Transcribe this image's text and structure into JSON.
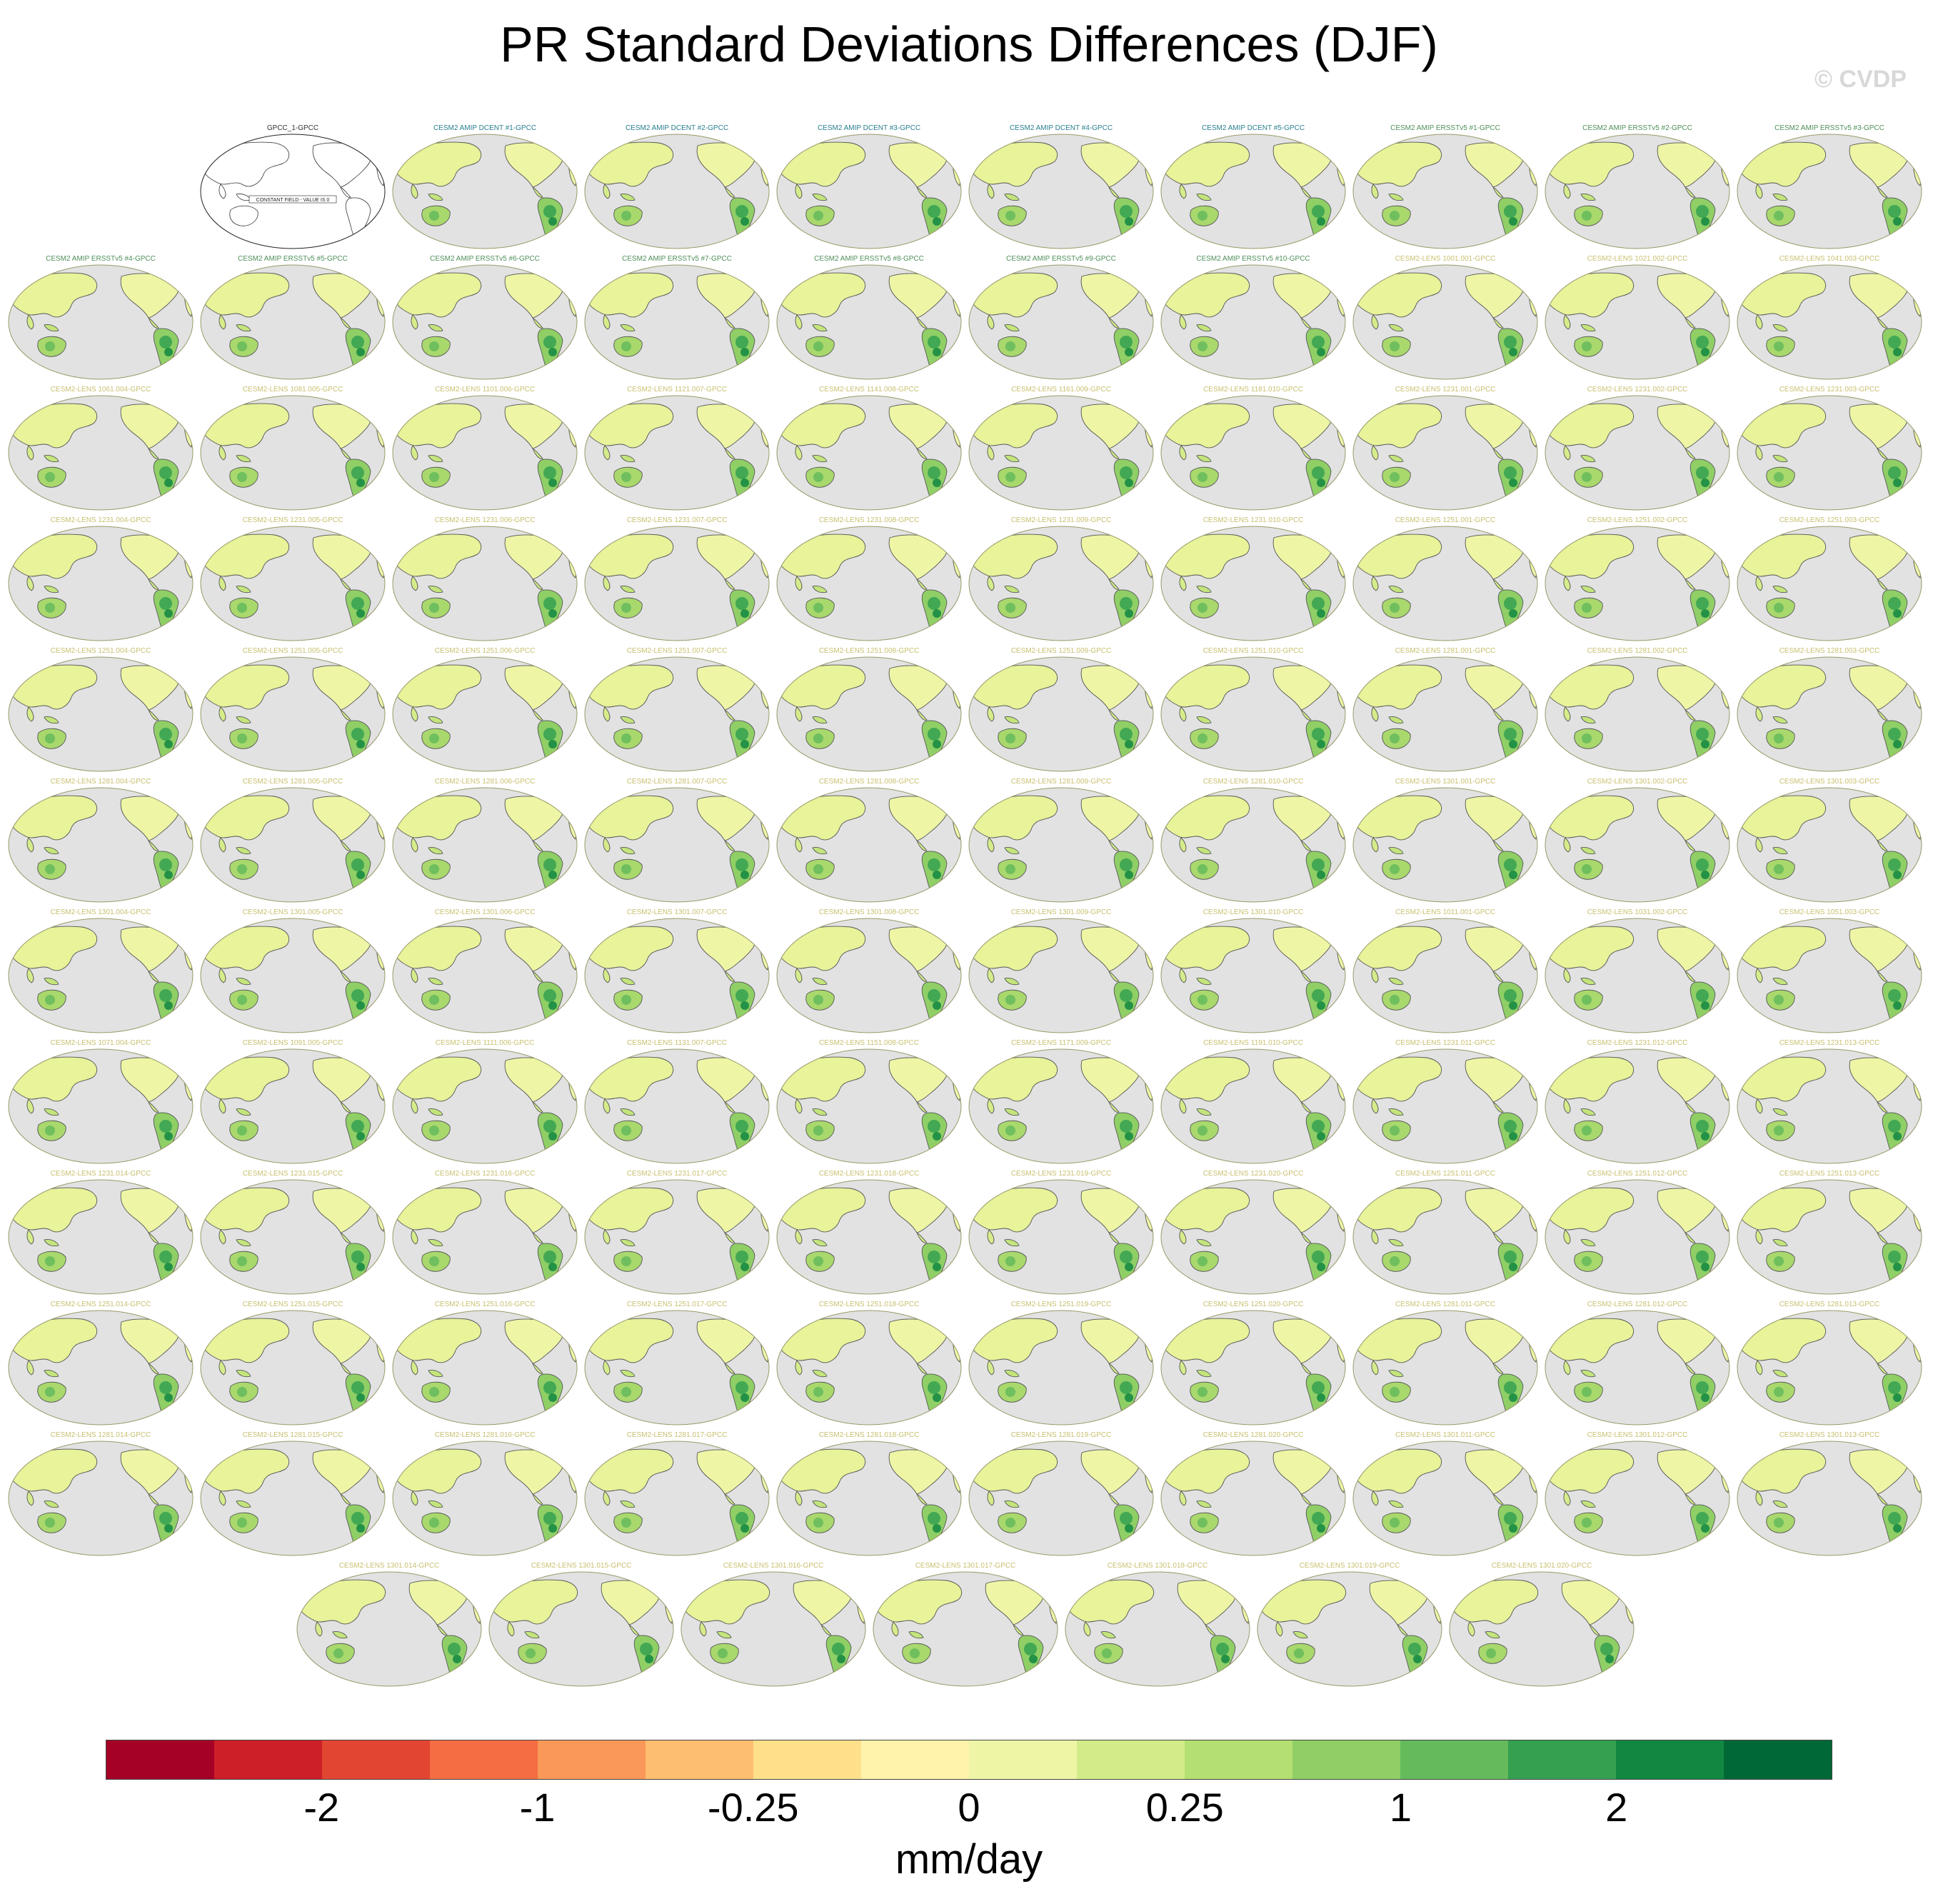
{
  "title": "PR Standard Deviations Differences (DJF)",
  "watermark": "© CVDP",
  "colors": {
    "ocean": "#e2e2e2",
    "coast": "#555555",
    "obs_title": "#333333",
    "dcent_title": "#2a7f8f",
    "ersst_title": "#4f8f5a",
    "lens_title": "#c8c070"
  },
  "panels": [
    {
      "title": "GPCC_1-GPCC",
      "kind": "obs",
      "note": "CONSTANT FIELD - VALUE IS 0"
    },
    {
      "title": "CESM2 AMIP DCENT #1-GPCC",
      "kind": "dcent"
    },
    {
      "title": "CESM2 AMIP DCENT #2-GPCC",
      "kind": "dcent"
    },
    {
      "title": "CESM2 AMIP DCENT #3-GPCC",
      "kind": "dcent"
    },
    {
      "title": "CESM2 AMIP DCENT #4-GPCC",
      "kind": "dcent"
    },
    {
      "title": "CESM2 AMIP DCENT #5-GPCC",
      "kind": "dcent"
    },
    {
      "title": "CESM2 AMIP ERSSTv5 #1-GPCC",
      "kind": "ersst"
    },
    {
      "title": "CESM2 AMIP ERSSTv5 #2-GPCC",
      "kind": "ersst"
    },
    {
      "title": "CESM2 AMIP ERSSTv5 #3-GPCC",
      "kind": "ersst"
    },
    {
      "title": "CESM2 AMIP ERSSTv5 #4-GPCC",
      "kind": "ersst"
    },
    {
      "title": "CESM2 AMIP ERSSTv5 #5-GPCC",
      "kind": "ersst"
    },
    {
      "title": "CESM2 AMIP ERSSTv5 #6-GPCC",
      "kind": "ersst"
    },
    {
      "title": "CESM2 AMIP ERSSTv5 #7-GPCC",
      "kind": "ersst"
    },
    {
      "title": "CESM2 AMIP ERSSTv5 #8-GPCC",
      "kind": "ersst"
    },
    {
      "title": "CESM2 AMIP ERSSTv5 #9-GPCC",
      "kind": "ersst"
    },
    {
      "title": "CESM2 AMIP ERSSTv5 #10-GPCC",
      "kind": "ersst"
    },
    {
      "title": "CESM2-LENS 1001.001-GPCC",
      "kind": "lens"
    },
    {
      "title": "CESM2-LENS 1021.002-GPCC",
      "kind": "lens"
    },
    {
      "title": "CESM2-LENS 1041.003-GPCC",
      "kind": "lens"
    },
    {
      "title": "CESM2-LENS 1061.004-GPCC",
      "kind": "lens"
    },
    {
      "title": "CESM2-LENS 1081.005-GPCC",
      "kind": "lens"
    },
    {
      "title": "CESM2-LENS 1101.006-GPCC",
      "kind": "lens"
    },
    {
      "title": "CESM2-LENS 1121.007-GPCC",
      "kind": "lens"
    },
    {
      "title": "CESM2-LENS 1141.008-GPCC",
      "kind": "lens"
    },
    {
      "title": "CESM2-LENS 1161.009-GPCC",
      "kind": "lens"
    },
    {
      "title": "CESM2-LENS 1181.010-GPCC",
      "kind": "lens"
    },
    {
      "title": "CESM2-LENS 1231.001-GPCC",
      "kind": "lens"
    },
    {
      "title": "CESM2-LENS 1231.002-GPCC",
      "kind": "lens"
    },
    {
      "title": "CESM2-LENS 1231.003-GPCC",
      "kind": "lens"
    },
    {
      "title": "CESM2-LENS 1231.004-GPCC",
      "kind": "lens"
    },
    {
      "title": "CESM2-LENS 1231.005-GPCC",
      "kind": "lens"
    },
    {
      "title": "CESM2-LENS 1231.006-GPCC",
      "kind": "lens"
    },
    {
      "title": "CESM2-LENS 1231.007-GPCC",
      "kind": "lens"
    },
    {
      "title": "CESM2-LENS 1231.008-GPCC",
      "kind": "lens"
    },
    {
      "title": "CESM2-LENS 1231.009-GPCC",
      "kind": "lens"
    },
    {
      "title": "CESM2-LENS 1231.010-GPCC",
      "kind": "lens"
    },
    {
      "title": "CESM2-LENS 1251.001-GPCC",
      "kind": "lens"
    },
    {
      "title": "CESM2-LENS 1251.002-GPCC",
      "kind": "lens"
    },
    {
      "title": "CESM2-LENS 1251.003-GPCC",
      "kind": "lens"
    },
    {
      "title": "CESM2-LENS 1251.004-GPCC",
      "kind": "lens"
    },
    {
      "title": "CESM2-LENS 1251.005-GPCC",
      "kind": "lens"
    },
    {
      "title": "CESM2-LENS 1251.006-GPCC",
      "kind": "lens"
    },
    {
      "title": "CESM2-LENS 1251.007-GPCC",
      "kind": "lens"
    },
    {
      "title": "CESM2-LENS 1251.008-GPCC",
      "kind": "lens"
    },
    {
      "title": "CESM2-LENS 1251.009-GPCC",
      "kind": "lens"
    },
    {
      "title": "CESM2-LENS 1251.010-GPCC",
      "kind": "lens"
    },
    {
      "title": "CESM2-LENS 1281.001-GPCC",
      "kind": "lens"
    },
    {
      "title": "CESM2-LENS 1281.002-GPCC",
      "kind": "lens"
    },
    {
      "title": "CESM2-LENS 1281.003-GPCC",
      "kind": "lens"
    },
    {
      "title": "CESM2-LENS 1281.004-GPCC",
      "kind": "lens"
    },
    {
      "title": "CESM2-LENS 1281.005-GPCC",
      "kind": "lens"
    },
    {
      "title": "CESM2-LENS 1281.006-GPCC",
      "kind": "lens"
    },
    {
      "title": "CESM2-LENS 1281.007-GPCC",
      "kind": "lens"
    },
    {
      "title": "CESM2-LENS 1281.008-GPCC",
      "kind": "lens"
    },
    {
      "title": "CESM2-LENS 1281.009-GPCC",
      "kind": "lens"
    },
    {
      "title": "CESM2-LENS 1281.010-GPCC",
      "kind": "lens"
    },
    {
      "title": "CESM2-LENS 1301.001-GPCC",
      "kind": "lens"
    },
    {
      "title": "CESM2-LENS 1301.002-GPCC",
      "kind": "lens"
    },
    {
      "title": "CESM2-LENS 1301.003-GPCC",
      "kind": "lens"
    },
    {
      "title": "CESM2-LENS 1301.004-GPCC",
      "kind": "lens"
    },
    {
      "title": "CESM2-LENS 1301.005-GPCC",
      "kind": "lens"
    },
    {
      "title": "CESM2-LENS 1301.006-GPCC",
      "kind": "lens"
    },
    {
      "title": "CESM2-LENS 1301.007-GPCC",
      "kind": "lens"
    },
    {
      "title": "CESM2-LENS 1301.008-GPCC",
      "kind": "lens"
    },
    {
      "title": "CESM2-LENS 1301.009-GPCC",
      "kind": "lens"
    },
    {
      "title": "CESM2-LENS 1301.010-GPCC",
      "kind": "lens"
    },
    {
      "title": "CESM2-LENS 1011.001-GPCC",
      "kind": "lens"
    },
    {
      "title": "CESM2-LENS 1031.002-GPCC",
      "kind": "lens"
    },
    {
      "title": "CESM2-LENS 1051.003-GPCC",
      "kind": "lens"
    },
    {
      "title": "CESM2-LENS 1071.004-GPCC",
      "kind": "lens"
    },
    {
      "title": "CESM2-LENS 1091.005-GPCC",
      "kind": "lens"
    },
    {
      "title": "CESM2-LENS 1111.006-GPCC",
      "kind": "lens"
    },
    {
      "title": "CESM2-LENS 1131.007-GPCC",
      "kind": "lens"
    },
    {
      "title": "CESM2-LENS 1151.008-GPCC",
      "kind": "lens"
    },
    {
      "title": "CESM2-LENS 1171.009-GPCC",
      "kind": "lens"
    },
    {
      "title": "CESM2-LENS 1191.010-GPCC",
      "kind": "lens"
    },
    {
      "title": "CESM2-LENS 1231.011-GPCC",
      "kind": "lens"
    },
    {
      "title": "CESM2-LENS 1231.012-GPCC",
      "kind": "lens"
    },
    {
      "title": "CESM2-LENS 1231.013-GPCC",
      "kind": "lens"
    },
    {
      "title": "CESM2-LENS 1231.014-GPCC",
      "kind": "lens"
    },
    {
      "title": "CESM2-LENS 1231.015-GPCC",
      "kind": "lens"
    },
    {
      "title": "CESM2-LENS 1231.016-GPCC",
      "kind": "lens"
    },
    {
      "title": "CESM2-LENS 1231.017-GPCC",
      "kind": "lens"
    },
    {
      "title": "CESM2-LENS 1231.018-GPCC",
      "kind": "lens"
    },
    {
      "title": "CESM2-LENS 1231.019-GPCC",
      "kind": "lens"
    },
    {
      "title": "CESM2-LENS 1231.020-GPCC",
      "kind": "lens"
    },
    {
      "title": "CESM2-LENS 1251.011-GPCC",
      "kind": "lens"
    },
    {
      "title": "CESM2-LENS 1251.012-GPCC",
      "kind": "lens"
    },
    {
      "title": "CESM2-LENS 1251.013-GPCC",
      "kind": "lens"
    },
    {
      "title": "CESM2-LENS 1251.014-GPCC",
      "kind": "lens"
    },
    {
      "title": "CESM2-LENS 1251.015-GPCC",
      "kind": "lens"
    },
    {
      "title": "CESM2-LENS 1251.016-GPCC",
      "kind": "lens"
    },
    {
      "title": "CESM2-LENS 1251.017-GPCC",
      "kind": "lens"
    },
    {
      "title": "CESM2-LENS 1251.018-GPCC",
      "kind": "lens"
    },
    {
      "title": "CESM2-LENS 1251.019-GPCC",
      "kind": "lens"
    },
    {
      "title": "CESM2-LENS 1251.020-GPCC",
      "kind": "lens"
    },
    {
      "title": "CESM2-LENS 1281.011-GPCC",
      "kind": "lens"
    },
    {
      "title": "CESM2-LENS 1281.012-GPCC",
      "kind": "lens"
    },
    {
      "title": "CESM2-LENS 1281.013-GPCC",
      "kind": "lens"
    },
    {
      "title": "CESM2-LENS 1281.014-GPCC",
      "kind": "lens"
    },
    {
      "title": "CESM2-LENS 1281.015-GPCC",
      "kind": "lens"
    },
    {
      "title": "CESM2-LENS 1281.016-GPCC",
      "kind": "lens"
    },
    {
      "title": "CESM2-LENS 1281.017-GPCC",
      "kind": "lens"
    },
    {
      "title": "CESM2-LENS 1281.018-GPCC",
      "kind": "lens"
    },
    {
      "title": "CESM2-LENS 1281.019-GPCC",
      "kind": "lens"
    },
    {
      "title": "CESM2-LENS 1281.020-GPCC",
      "kind": "lens"
    },
    {
      "title": "CESM2-LENS 1301.011-GPCC",
      "kind": "lens"
    },
    {
      "title": "CESM2-LENS 1301.012-GPCC",
      "kind": "lens"
    },
    {
      "title": "CESM2-LENS 1301.013-GPCC",
      "kind": "lens"
    },
    {
      "title": "CESM2-LENS 1301.014-GPCC",
      "kind": "lens"
    },
    {
      "title": "CESM2-LENS 1301.015-GPCC",
      "kind": "lens"
    },
    {
      "title": "CESM2-LENS 1301.016-GPCC",
      "kind": "lens"
    },
    {
      "title": "CESM2-LENS 1301.017-GPCC",
      "kind": "lens"
    },
    {
      "title": "CESM2-LENS 1301.018-GPCC",
      "kind": "lens"
    },
    {
      "title": "CESM2-LENS 1301.019-GPCC",
      "kind": "lens"
    },
    {
      "title": "CESM2-LENS 1301.020-GPCC",
      "kind": "lens"
    }
  ],
  "colorbar": {
    "unit": "mm/day",
    "colors": [
      "#a50026",
      "#cc1f27",
      "#e24632",
      "#f46d43",
      "#f99858",
      "#fdbe6f",
      "#fee08b",
      "#fff3ac",
      "#eef6a6",
      "#d2ec8a",
      "#b4df72",
      "#8fcf66",
      "#65bb5c",
      "#35a150",
      "#128741",
      "#006837"
    ],
    "labels": [
      {
        "text": "-2",
        "boundary": 2
      },
      {
        "text": "-1",
        "boundary": 4
      },
      {
        "text": "-0.25",
        "boundary": 6
      },
      {
        "text": "0",
        "boundary": 8
      },
      {
        "text": "0.25",
        "boundary": 10
      },
      {
        "text": "1",
        "boundary": 12
      },
      {
        "text": "2",
        "boundary": 14
      }
    ]
  }
}
